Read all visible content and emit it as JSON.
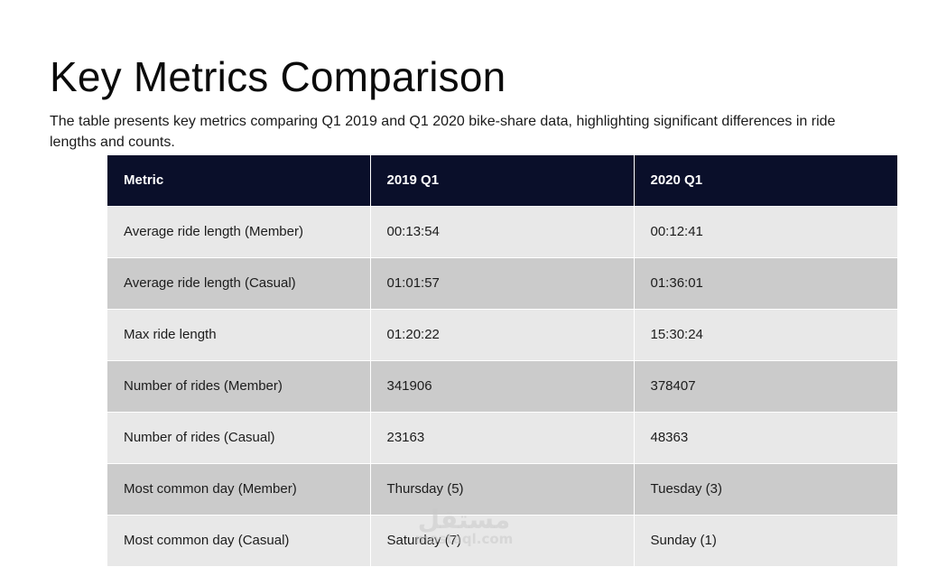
{
  "page": {
    "title": "Key Metrics Comparison",
    "subtitle": "The table presents key metrics comparing Q1 2019 and Q1 2020 bike-share data, highlighting significant differences in ride lengths and counts."
  },
  "table": {
    "headers": [
      "Metric",
      "2019 Q1",
      "2020 Q1"
    ],
    "rows": [
      [
        "Average ride length (Member)",
        "00:13:54",
        "00:12:41"
      ],
      [
        "Average ride length (Casual)",
        "01:01:57",
        "01:36:01"
      ],
      [
        "Max ride length",
        "01:20:22",
        "15:30:24"
      ],
      [
        "Number of rides (Member)",
        "341906",
        "378407"
      ],
      [
        "Number of rides (Casual)",
        "23163",
        "48363"
      ],
      [
        "Most common day (Member)",
        "Thursday (5)",
        "Tuesday (3)"
      ],
      [
        "Most common day (Casual)",
        "Saturday (7)",
        "Sunday (1)"
      ]
    ]
  },
  "watermark": {
    "arabic": "مستقل",
    "latin": "mostaql.com"
  },
  "colors": {
    "header_bg": "#0a0f2a",
    "row_light": "#e8e8e8",
    "row_dark": "#cbcbcb"
  }
}
